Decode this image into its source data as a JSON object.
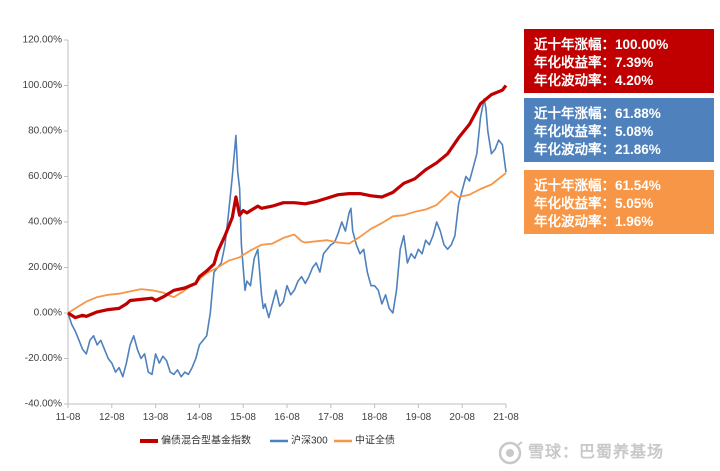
{
  "chart_data": {
    "type": "line",
    "y_ticks": [
      "-40.00%",
      "-20.00%",
      "0.00%",
      "20.00%",
      "40.00%",
      "60.00%",
      "80.00%",
      "100.00%",
      "120.00%"
    ],
    "y_tick_values": [
      -40,
      -20,
      0,
      20,
      40,
      60,
      80,
      100,
      120
    ],
    "ylim": [
      -40,
      120
    ],
    "x_ticks": [
      "11-08",
      "12-08",
      "13-08",
      "14-08",
      "15-08",
      "16-08",
      "17-08",
      "18-08",
      "19-08",
      "20-08",
      "21-08"
    ],
    "x_tick_values": [
      2011.583,
      2012.583,
      2013.583,
      2014.583,
      2015.583,
      2016.583,
      2017.583,
      2018.583,
      2019.583,
      2020.583,
      2021.583
    ],
    "xlim": [
      2011.583,
      2021.583
    ],
    "series": [
      {
        "name": "偏债混合型基金指数",
        "color": "#c00000",
        "x": [
          2011.583,
          2011.75,
          2011.917,
          2012.0,
          2012.25,
          2012.5,
          2012.75,
          2012.917,
          2013.0,
          2013.25,
          2013.5,
          2013.583,
          2013.75,
          2014.0,
          2014.25,
          2014.5,
          2014.583,
          2014.75,
          2014.917,
          2015.0,
          2015.167,
          2015.333,
          2015.417,
          2015.5,
          2015.583,
          2015.667,
          2015.75,
          2015.917,
          2016.0,
          2016.25,
          2016.5,
          2016.75,
          2017.0,
          2017.25,
          2017.5,
          2017.75,
          2018.0,
          2018.25,
          2018.5,
          2018.75,
          2019.0,
          2019.25,
          2019.5,
          2019.75,
          2020.0,
          2020.25,
          2020.5,
          2020.75,
          2021.0,
          2021.25,
          2021.5,
          2021.583
        ],
        "y": [
          0.0,
          -2.0,
          -1.0,
          -1.5,
          0.5,
          1.5,
          2.0,
          4.0,
          5.5,
          6.0,
          6.5,
          5.5,
          7.0,
          10.0,
          11.0,
          13.0,
          16.0,
          18.5,
          21.5,
          27.0,
          34.0,
          42.0,
          51.0,
          43.0,
          45.0,
          44.0,
          45.0,
          47.0,
          46.0,
          47.0,
          48.5,
          48.5,
          48.0,
          49.0,
          50.5,
          52.0,
          52.5,
          52.5,
          51.5,
          51.0,
          53.0,
          57.0,
          59.0,
          63.0,
          66.0,
          70.0,
          77.0,
          83.0,
          92.0,
          96.0,
          98.0,
          100.0
        ]
      },
      {
        "name": "沪深300",
        "color": "#4f81bd",
        "x": [
          2011.583,
          2011.667,
          2011.75,
          2011.833,
          2011.917,
          2012.0,
          2012.083,
          2012.167,
          2012.25,
          2012.333,
          2012.417,
          2012.5,
          2012.583,
          2012.667,
          2012.75,
          2012.833,
          2012.917,
          2013.0,
          2013.083,
          2013.167,
          2013.25,
          2013.333,
          2013.417,
          2013.5,
          2013.583,
          2013.667,
          2013.75,
          2013.833,
          2013.917,
          2014.0,
          2014.083,
          2014.167,
          2014.25,
          2014.333,
          2014.417,
          2014.5,
          2014.583,
          2014.667,
          2014.75,
          2014.833,
          2014.917,
          2015.0,
          2015.083,
          2015.167,
          2015.25,
          2015.333,
          2015.417,
          2015.458,
          2015.5,
          2015.542,
          2015.583,
          2015.625,
          2015.667,
          2015.75,
          2015.833,
          2015.917,
          2016.0,
          2016.042,
          2016.083,
          2016.167,
          2016.25,
          2016.333,
          2016.417,
          2016.5,
          2016.583,
          2016.667,
          2016.75,
          2016.833,
          2016.917,
          2017.0,
          2017.083,
          2017.167,
          2017.25,
          2017.333,
          2017.417,
          2017.5,
          2017.583,
          2017.667,
          2017.75,
          2017.833,
          2017.917,
          2018.0,
          2018.042,
          2018.083,
          2018.167,
          2018.25,
          2018.333,
          2018.417,
          2018.5,
          2018.583,
          2018.667,
          2018.75,
          2018.833,
          2018.917,
          2019.0,
          2019.083,
          2019.167,
          2019.25,
          2019.333,
          2019.417,
          2019.5,
          2019.583,
          2019.667,
          2019.75,
          2019.833,
          2019.917,
          2020.0,
          2020.083,
          2020.167,
          2020.25,
          2020.333,
          2020.417,
          2020.5,
          2020.583,
          2020.667,
          2020.75,
          2020.833,
          2020.917,
          2021.0,
          2021.083,
          2021.125,
          2021.167,
          2021.25,
          2021.333,
          2021.417,
          2021.5,
          2021.583
        ],
        "y": [
          0.0,
          -5.0,
          -8.0,
          -12.0,
          -16.0,
          -18.0,
          -12.0,
          -10.0,
          -14.0,
          -12.0,
          -16.0,
          -20.0,
          -22.0,
          -26.0,
          -24.0,
          -28.0,
          -22.0,
          -14.0,
          -10.0,
          -16.0,
          -20.0,
          -18.0,
          -26.0,
          -27.0,
          -18.0,
          -22.0,
          -19.0,
          -21.0,
          -26.0,
          -27.0,
          -25.0,
          -28.0,
          -26.0,
          -27.0,
          -24.0,
          -20.0,
          -14.0,
          -12.0,
          -10.0,
          0.0,
          18.0,
          20.0,
          22.0,
          30.0,
          44.0,
          60.0,
          78.0,
          62.0,
          55.0,
          30.0,
          20.0,
          10.0,
          14.0,
          12.0,
          24.0,
          28.0,
          8.0,
          2.0,
          4.0,
          -2.0,
          4.0,
          10.0,
          3.0,
          5.0,
          12.0,
          8.0,
          10.0,
          14.0,
          16.0,
          13.0,
          16.0,
          20.0,
          22.0,
          18.0,
          26.0,
          28.0,
          30.0,
          31.0,
          35.0,
          40.0,
          36.0,
          44.0,
          46.0,
          36.0,
          30.0,
          26.0,
          28.0,
          18.0,
          12.0,
          12.0,
          10.0,
          4.0,
          8.0,
          2.0,
          0.0,
          10.0,
          28.0,
          34.0,
          22.0,
          26.0,
          24.0,
          28.0,
          26.0,
          32.0,
          30.0,
          34.0,
          40.0,
          36.0,
          30.0,
          28.0,
          30.0,
          34.0,
          48.0,
          54.0,
          60.0,
          58.0,
          64.0,
          70.0,
          86.0,
          94.0,
          90.0,
          80.0,
          70.0,
          72.0,
          76.0,
          74.0,
          61.88
        ]
      },
      {
        "name": "中证全债",
        "color": "#f79646",
        "x": [
          2011.583,
          2011.75,
          2012.0,
          2012.25,
          2012.5,
          2012.75,
          2013.0,
          2013.25,
          2013.5,
          2013.75,
          2013.917,
          2014.0,
          2014.25,
          2014.5,
          2014.75,
          2015.0,
          2015.25,
          2015.5,
          2015.75,
          2016.0,
          2016.25,
          2016.5,
          2016.75,
          2016.917,
          2017.0,
          2017.25,
          2017.5,
          2017.75,
          2018.0,
          2018.25,
          2018.5,
          2018.75,
          2019.0,
          2019.25,
          2019.5,
          2019.75,
          2020.0,
          2020.25,
          2020.333,
          2020.5,
          2020.75,
          2021.0,
          2021.25,
          2021.583
        ],
        "y": [
          0.0,
          2.0,
          5.0,
          7.0,
          8.0,
          8.5,
          9.5,
          10.5,
          10.0,
          9.0,
          7.5,
          7.0,
          10.0,
          13.5,
          17.5,
          20.0,
          23.0,
          24.5,
          27.5,
          30.0,
          30.5,
          33.0,
          34.5,
          31.5,
          31.0,
          31.5,
          32.0,
          31.0,
          30.5,
          33.5,
          37.0,
          39.5,
          42.5,
          43.0,
          44.5,
          45.5,
          47.5,
          52.0,
          53.5,
          51.0,
          52.0,
          54.5,
          56.5,
          61.54
        ]
      }
    ]
  },
  "stat_boxes": [
    {
      "color": "#c00000",
      "lines": [
        "近十年涨幅：100.00%",
        "年化收益率：7.39%",
        "年化波动率：4.20%"
      ]
    },
    {
      "color": "#4f81bd",
      "lines": [
        "近十年涨幅：61.88%",
        "年化收益率：5.08%",
        "年化波动率：21.86%"
      ]
    },
    {
      "color": "#f79646",
      "lines": [
        "近十年涨幅：61.54%",
        "年化收益率：5.05%",
        "年化波动率：1.96%"
      ]
    }
  ],
  "watermark": {
    "text": "雪球：巴蜀养基场"
  }
}
